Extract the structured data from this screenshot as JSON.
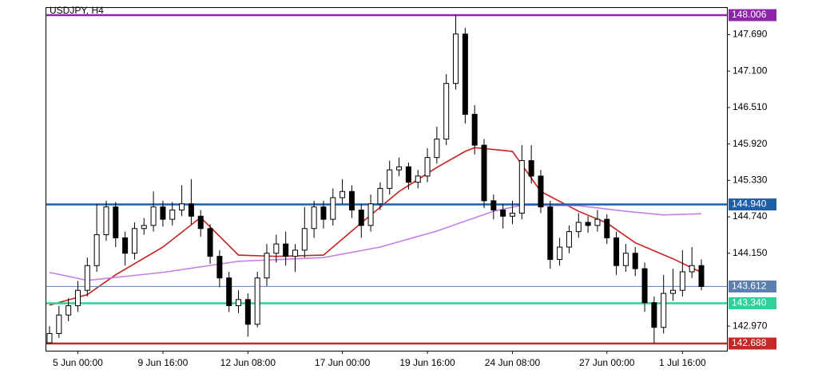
{
  "chart_data": {
    "type": "candlestick",
    "title": "USDJPY, H4",
    "categories": [
      null,
      null,
      null,
      "5 Jun 00:00",
      null,
      null,
      null,
      null,
      null,
      null,
      null,
      null,
      "9 Jun 16:00",
      null,
      null,
      null,
      null,
      null,
      null,
      null,
      null,
      "12 Jun 08:00",
      null,
      null,
      null,
      null,
      null,
      null,
      null,
      null,
      null,
      "17 Jun 00:00",
      null,
      null,
      null,
      null,
      null,
      null,
      null,
      null,
      "19 Jun 16:00",
      null,
      null,
      null,
      null,
      null,
      null,
      null,
      null,
      "24 Jun 08:00",
      null,
      null,
      null,
      null,
      null,
      null,
      null,
      null,
      null,
      "27 Jun 00:00",
      null,
      null,
      null,
      null,
      null,
      null,
      null,
      "1 Jul 16:00",
      null,
      null
    ],
    "open": [
      142.7,
      142.85,
      143.15,
      143.3,
      143.55,
      143.95,
      144.45,
      144.9,
      144.4,
      144.15,
      144.55,
      144.6,
      144.9,
      144.7,
      144.85,
      144.95,
      144.75,
      144.55,
      144.1,
      143.75,
      143.3,
      143.4,
      143.0,
      143.75,
      144.15,
      144.3,
      144.1,
      144.2,
      144.55,
      144.9,
      144.7,
      145.05,
      145.15,
      144.85,
      144.6,
      144.95,
      145.2,
      145.5,
      145.55,
      145.3,
      145.4,
      145.7,
      146.0,
      146.9,
      147.7,
      146.4,
      145.9,
      145.0,
      144.85,
      144.75,
      144.8,
      145.65,
      145.4,
      144.9,
      144.05,
      144.25,
      144.5,
      144.65,
      144.6,
      144.7,
      144.4,
      143.95,
      144.15,
      143.9,
      143.35,
      142.95,
      143.5,
      143.55,
      143.85,
      143.95
    ],
    "high": [
      142.97,
      143.3,
      143.42,
      143.7,
      144.08,
      144.95,
      145.0,
      144.98,
      144.5,
      144.65,
      144.72,
      145.15,
      145.0,
      144.98,
      145.25,
      145.35,
      144.85,
      144.62,
      144.2,
      143.85,
      143.55,
      143.5,
      143.85,
      144.3,
      144.45,
      144.5,
      144.3,
      144.9,
      145.0,
      145.0,
      145.2,
      145.35,
      145.25,
      144.95,
      145.1,
      145.3,
      145.65,
      145.7,
      145.62,
      145.5,
      145.85,
      146.2,
      147.05,
      148.006,
      147.8,
      146.55,
      146.0,
      145.1,
      144.95,
      145.0,
      145.9,
      145.9,
      145.5,
      145.0,
      144.4,
      144.6,
      144.8,
      144.75,
      144.85,
      144.78,
      144.5,
      144.3,
      144.25,
      144.0,
      143.45,
      143.8,
      143.9,
      144.2,
      144.25,
      144.05
    ],
    "low": [
      142.688,
      142.78,
      143.05,
      143.2,
      143.45,
      143.85,
      144.35,
      144.25,
      143.95,
      144.05,
      144.45,
      144.5,
      144.58,
      144.6,
      144.75,
      144.62,
      144.42,
      143.98,
      143.6,
      143.2,
      143.18,
      142.8,
      142.95,
      143.62,
      144.0,
      143.95,
      143.85,
      144.08,
      144.4,
      144.55,
      144.6,
      144.95,
      144.72,
      144.4,
      144.5,
      144.85,
      145.1,
      145.4,
      145.18,
      145.2,
      145.3,
      145.6,
      145.9,
      146.8,
      146.25,
      145.75,
      144.88,
      144.7,
      144.55,
      144.62,
      144.7,
      145.28,
      144.8,
      143.9,
      143.95,
      144.15,
      144.4,
      144.48,
      144.5,
      144.3,
      143.8,
      143.85,
      143.78,
      143.2,
      142.7,
      142.85,
      143.38,
      143.45,
      143.75,
      143.55
    ],
    "close": [
      142.85,
      143.15,
      143.3,
      143.55,
      143.95,
      144.45,
      144.9,
      144.4,
      144.15,
      144.55,
      144.6,
      144.9,
      144.7,
      144.85,
      144.95,
      144.75,
      144.55,
      144.1,
      143.75,
      143.3,
      143.4,
      143.0,
      143.75,
      144.15,
      144.3,
      144.1,
      144.2,
      144.55,
      144.9,
      144.7,
      145.05,
      145.15,
      144.85,
      144.6,
      144.95,
      145.2,
      145.5,
      145.55,
      145.3,
      145.4,
      145.7,
      146.0,
      146.9,
      147.7,
      146.4,
      145.9,
      145.0,
      144.85,
      144.75,
      144.8,
      145.65,
      145.4,
      144.9,
      144.05,
      144.25,
      144.5,
      144.65,
      144.6,
      144.7,
      144.4,
      143.95,
      144.15,
      143.9,
      143.35,
      142.95,
      143.5,
      143.55,
      143.85,
      143.95,
      143.612
    ],
    "up_color": "#ffffff",
    "down_color": "#000000",
    "lines": [
      {
        "color": "#c62020",
        "x": [
          0,
          4,
          7,
          12,
          16,
          20,
          24,
          29,
          33,
          37,
          41,
          44,
          45,
          49,
          52,
          56,
          59,
          62,
          66,
          69
        ],
        "values": [
          143.31,
          143.48,
          143.8,
          144.25,
          144.73,
          144.12,
          144.1,
          144.12,
          144.64,
          145.15,
          145.54,
          145.8,
          145.86,
          145.8,
          145.15,
          144.83,
          144.64,
          144.32,
          144.06,
          143.84
        ]
      },
      {
        "color": "#c77ee6",
        "x": [
          0,
          4,
          12,
          20,
          29,
          35,
          41,
          47,
          50,
          56,
          61,
          65,
          69
        ],
        "values": [
          143.84,
          143.71,
          143.84,
          144.02,
          144.08,
          144.25,
          144.51,
          144.83,
          144.93,
          144.92,
          144.83,
          144.77,
          144.79
        ]
      }
    ],
    "levels": [
      {
        "value": 148.006,
        "color": "#8e24aa"
      },
      {
        "value": {
          "value": 144.94,
          "label": "144.940"
        },
        "color": "#1f5fa8"
      },
      {
        "value": 143.612,
        "color": "#5b7fae"
      },
      {
        "value": {
          "value": 143.34,
          "label": "143.340"
        },
        "color": "#2ed199"
      },
      {
        "value": 142.688,
        "color": "#c62828"
      }
    ],
    "ylim": [
      142.572,
      148.122
    ],
    "yticks": [
      {
        "value": 147.69,
        "label": "147.690"
      },
      {
        "value": 147.1,
        "label": "147.100"
      },
      {
        "value": 146.51,
        "label": "146.510"
      },
      {
        "value": 145.92,
        "label": "145.920"
      },
      {
        "value": 145.33,
        "label": "145.330"
      },
      {
        "value": 144.74,
        "label": "144.740"
      },
      {
        "value": 144.15,
        "label": "144.150"
      },
      {
        "value": 142.97,
        "label": "142.970"
      }
    ]
  }
}
